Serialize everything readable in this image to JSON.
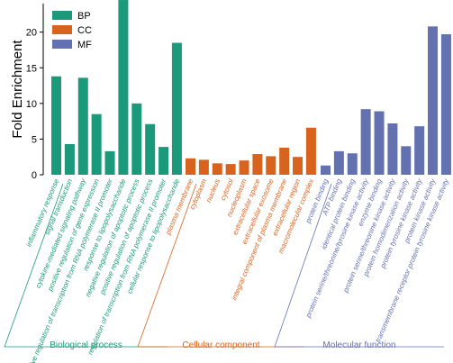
{
  "chart_data": {
    "type": "bar",
    "ylabel": "Fold Enrichment",
    "yticks": [
      0,
      5,
      10,
      15,
      20
    ],
    "ylim": [
      0,
      24
    ],
    "legend": {
      "placement": "top-left",
      "entries": [
        {
          "label": "BP",
          "color": "#1a9a7a"
        },
        {
          "label": "CC",
          "color": "#d8631c"
        },
        {
          "label": "MF",
          "color": "#6471b0"
        }
      ]
    },
    "groups": [
      {
        "key": "BP",
        "label": "Biological process",
        "color": "#1a9a7a",
        "categories": [
          {
            "label": "inflammatory response",
            "value": 13.8
          },
          {
            "label": "signal transduction",
            "value": 4.3
          },
          {
            "label": "cytokine-mediated signaling pathway",
            "value": 13.6
          },
          {
            "label": "positive regulation of gene expression",
            "value": 8.5
          },
          {
            "label": "positive regulation of transcription from RNA polymerase II promoter",
            "value": 3.3
          },
          {
            "label": "response to lipopolysaccharide",
            "value": 24.5
          },
          {
            "label": "negative regulation of apoptotic process",
            "value": 10.0
          },
          {
            "label": "positive regulation of apoptotic process",
            "value": 7.1
          },
          {
            "label": "regulation of transcription from RNA polymerase II promoter",
            "value": 3.9
          },
          {
            "label": "cellular response to lipopolysaccharide",
            "value": 18.5
          }
        ]
      },
      {
        "key": "CC",
        "label": "Cellular component",
        "color": "#d8631c",
        "categories": [
          {
            "label": "plasma membrane",
            "value": 2.3
          },
          {
            "label": "cytoplasm",
            "value": 2.1
          },
          {
            "label": "nucleus",
            "value": 1.6
          },
          {
            "label": "cytosol",
            "value": 1.5
          },
          {
            "label": "nucleoplasm",
            "value": 2.0
          },
          {
            "label": "extracellular space",
            "value": 2.9
          },
          {
            "label": "extracellular exosome",
            "value": 2.6
          },
          {
            "label": "integral component of plasma membrane",
            "value": 3.8
          },
          {
            "label": "extracellular region",
            "value": 2.5
          },
          {
            "label": "macromolecular complex",
            "value": 6.6
          }
        ]
      },
      {
        "key": "MF",
        "label": "Molecular function",
        "color": "#6471b0",
        "categories": [
          {
            "label": "protein binding",
            "value": 1.3
          },
          {
            "label": "ATP binding",
            "value": 3.3
          },
          {
            "label": "identical protein binding",
            "value": 3.0
          },
          {
            "label": "protein serine/threonine/tyrosine kinase activity",
            "value": 9.2
          },
          {
            "label": "enzyme binding",
            "value": 8.9
          },
          {
            "label": "protein serine/threonine kinase activity",
            "value": 7.2
          },
          {
            "label": "protein homodimerization activity",
            "value": 4.0
          },
          {
            "label": "protein tyrosine kinase activity",
            "value": 6.8
          },
          {
            "label": "protein kinase activity",
            "value": 20.8
          },
          {
            "label": "transmembrane receptor protein tyrosine kinase activity",
            "value": 19.7
          }
        ]
      }
    ]
  }
}
